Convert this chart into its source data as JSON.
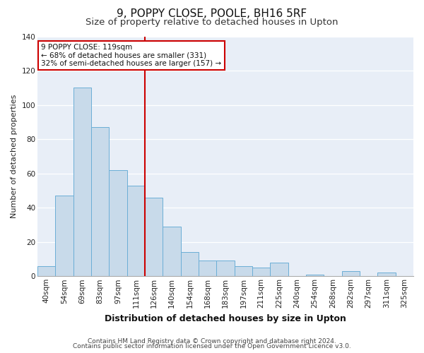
{
  "title": "9, POPPY CLOSE, POOLE, BH16 5RF",
  "subtitle": "Size of property relative to detached houses in Upton",
  "xlabel": "Distribution of detached houses by size in Upton",
  "ylabel": "Number of detached properties",
  "bar_labels": [
    "40sqm",
    "54sqm",
    "69sqm",
    "83sqm",
    "97sqm",
    "111sqm",
    "126sqm",
    "140sqm",
    "154sqm",
    "168sqm",
    "183sqm",
    "197sqm",
    "211sqm",
    "225sqm",
    "240sqm",
    "254sqm",
    "268sqm",
    "282sqm",
    "297sqm",
    "311sqm",
    "325sqm"
  ],
  "bar_values": [
    6,
    47,
    110,
    87,
    62,
    53,
    46,
    29,
    14,
    9,
    9,
    6,
    5,
    8,
    0,
    1,
    0,
    3,
    0,
    2,
    0
  ],
  "bar_color": "#c8daea",
  "bar_edge_color": "#6baed6",
  "vline_index": 6,
  "vline_color": "#cc0000",
  "annotation_text": "9 POPPY CLOSE: 119sqm\n← 68% of detached houses are smaller (331)\n32% of semi-detached houses are larger (157) →",
  "annotation_box_edge_color": "#cc0000",
  "annotation_box_face_color": "#ffffff",
  "ylim": [
    0,
    140
  ],
  "yticks": [
    0,
    20,
    40,
    60,
    80,
    100,
    120,
    140
  ],
  "footer_line1": "Contains HM Land Registry data © Crown copyright and database right 2024.",
  "footer_line2": "Contains public sector information licensed under the Open Government Licence v3.0.",
  "plot_bg_color": "#e8eef7",
  "fig_bg_color": "#ffffff",
  "grid_color": "#ffffff",
  "title_fontsize": 11,
  "subtitle_fontsize": 9.5,
  "xlabel_fontsize": 9,
  "ylabel_fontsize": 8,
  "tick_fontsize": 7.5,
  "footer_fontsize": 6.5,
  "annotation_fontsize": 7.5
}
